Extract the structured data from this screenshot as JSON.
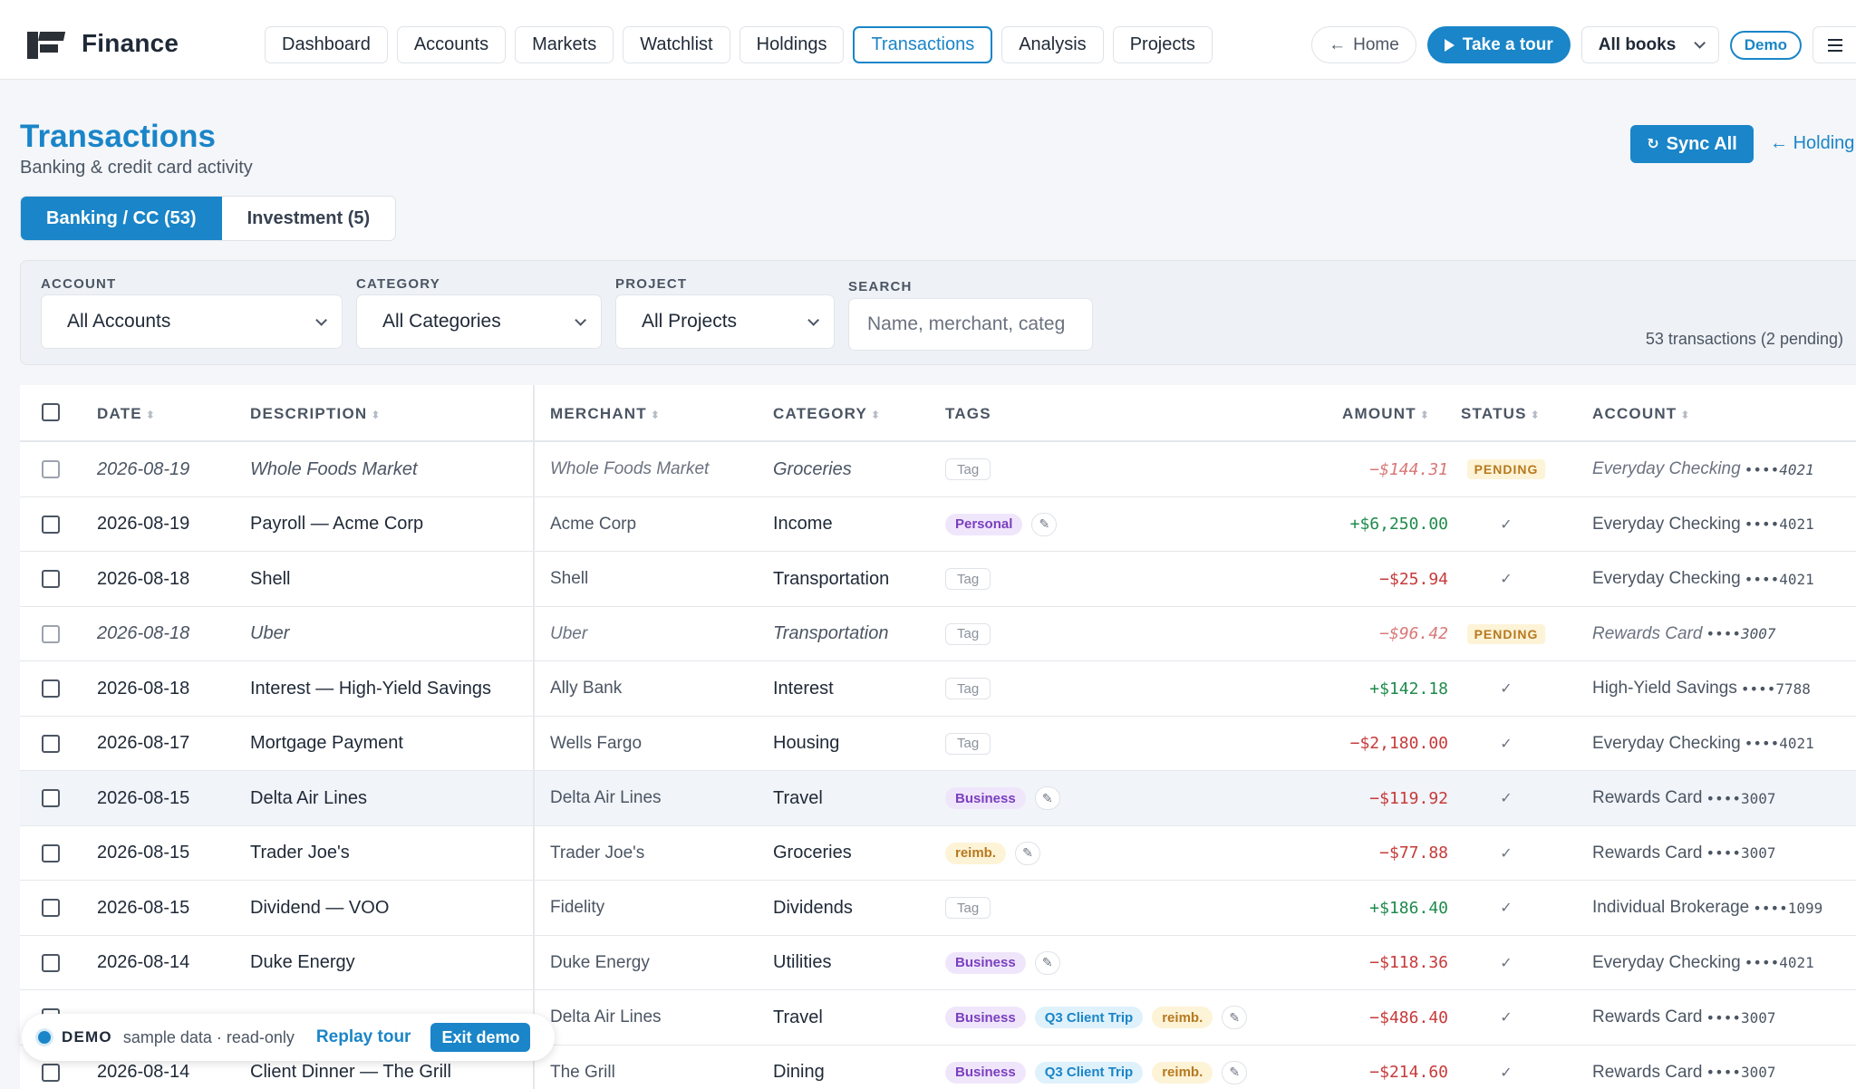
{
  "app": {
    "name": "Finance"
  },
  "nav": [
    "Dashboard",
    "Accounts",
    "Markets",
    "Watchlist",
    "Holdings",
    "Transactions",
    "Analysis",
    "Projects"
  ],
  "nav_active": "Transactions",
  "topbar": {
    "home": "Home",
    "tour": "Take a tour",
    "books": "All books",
    "demo": "Demo"
  },
  "header": {
    "title": "Transactions",
    "subtitle": "Banking & credit card activity",
    "sync": "Sync All",
    "holdings_link": "Holding"
  },
  "tabs": [
    "Banking / CC (53)",
    "Investment (5)"
  ],
  "filters": {
    "account_label": "ACCOUNT",
    "account_value": "All Accounts",
    "category_label": "CATEGORY",
    "category_value": "All Categories",
    "project_label": "PROJECT",
    "project_value": "All Projects",
    "search_label": "SEARCH",
    "search_placeholder": "Name, merchant, categ",
    "count": "53 transactions (2 pending)"
  },
  "columns": {
    "date": "DATE",
    "description": "DESCRIPTION",
    "merchant": "MERCHANT",
    "category": "CATEGORY",
    "tags": "TAGS",
    "amount": "AMOUNT",
    "status": "STATUS",
    "account": "ACCOUNT"
  },
  "rows": [
    {
      "date": "2026-08-19",
      "desc": "Whole Foods Market",
      "merchant": "Whole Foods Market",
      "category": "Groceries",
      "tags": [],
      "amount": "−$144.31",
      "sign": "neg",
      "status": "PENDING",
      "account": "Everyday Checking",
      "acct": "••••4021"
    },
    {
      "date": "2026-08-19",
      "desc": "Payroll — Acme Corp",
      "merchant": "Acme Corp",
      "category": "Income",
      "tags": [
        "Personal"
      ],
      "amount": "+$6,250.00",
      "sign": "pos",
      "status": "✓",
      "account": "Everyday Checking",
      "acct": "••••4021"
    },
    {
      "date": "2026-08-18",
      "desc": "Shell",
      "merchant": "Shell",
      "category": "Transportation",
      "tags": [],
      "amount": "−$25.94",
      "sign": "neg",
      "status": "✓",
      "account": "Everyday Checking",
      "acct": "••••4021"
    },
    {
      "date": "2026-08-18",
      "desc": "Uber",
      "merchant": "Uber",
      "category": "Transportation",
      "tags": [],
      "amount": "−$96.42",
      "sign": "neg",
      "status": "PENDING",
      "account": "Rewards Card",
      "acct": "••••3007"
    },
    {
      "date": "2026-08-18",
      "desc": "Interest — High-Yield Savings",
      "merchant": "Ally Bank",
      "category": "Interest",
      "tags": [],
      "amount": "+$142.18",
      "sign": "pos",
      "status": "✓",
      "account": "High-Yield Savings",
      "acct": "••••7788"
    },
    {
      "date": "2026-08-17",
      "desc": "Mortgage Payment",
      "merchant": "Wells Fargo",
      "category": "Housing",
      "tags": [],
      "amount": "−$2,180.00",
      "sign": "neg",
      "status": "✓",
      "account": "Everyday Checking",
      "acct": "••••4021"
    },
    {
      "date": "2026-08-15",
      "desc": "Delta Air Lines",
      "merchant": "Delta Air Lines",
      "category": "Travel",
      "tags": [
        "Business"
      ],
      "amount": "−$119.92",
      "sign": "neg",
      "status": "✓",
      "account": "Rewards Card",
      "acct": "••••3007"
    },
    {
      "date": "2026-08-15",
      "desc": "Trader Joe's",
      "merchant": "Trader Joe's",
      "category": "Groceries",
      "tags": [
        "reimb."
      ],
      "amount": "−$77.88",
      "sign": "neg",
      "status": "✓",
      "account": "Rewards Card",
      "acct": "••••3007"
    },
    {
      "date": "2026-08-15",
      "desc": "Dividend — VOO",
      "merchant": "Fidelity",
      "category": "Dividends",
      "tags": [],
      "amount": "+$186.40",
      "sign": "pos",
      "status": "✓",
      "account": "Individual Brokerage",
      "acct": "••••1099"
    },
    {
      "date": "2026-08-14",
      "desc": "Duke Energy",
      "merchant": "Duke Energy",
      "category": "Utilities",
      "tags": [
        "Business"
      ],
      "amount": "−$118.36",
      "sign": "neg",
      "status": "✓",
      "account": "Everyday Checking",
      "acct": "••••4021"
    },
    {
      "date": "",
      "desc": "",
      "merchant": "Delta Air Lines",
      "category": "Travel",
      "tags": [
        "Business",
        "Q3 Client Trip",
        "reimb."
      ],
      "amount": "−$486.40",
      "sign": "neg",
      "status": "✓",
      "account": "Rewards Card",
      "acct": "••••3007"
    },
    {
      "date": "2026-08-14",
      "desc": "Client Dinner — The Grill",
      "merchant": "The Grill",
      "category": "Dining",
      "tags": [
        "Business",
        "Q3 Client Trip",
        "reimb."
      ],
      "amount": "−$214.60",
      "sign": "neg",
      "status": "✓",
      "account": "Rewards Card",
      "acct": "••••3007"
    }
  ],
  "tag_placeholder": "Tag",
  "demo_bar": {
    "label": "DEMO",
    "text": "sample data · read-only",
    "replay": "Replay tour",
    "exit": "Exit demo"
  },
  "colors": {
    "accent": "#1a85c8",
    "negative": "#c73a3a",
    "positive": "#1f8a4c",
    "pending": "#b7791f"
  }
}
